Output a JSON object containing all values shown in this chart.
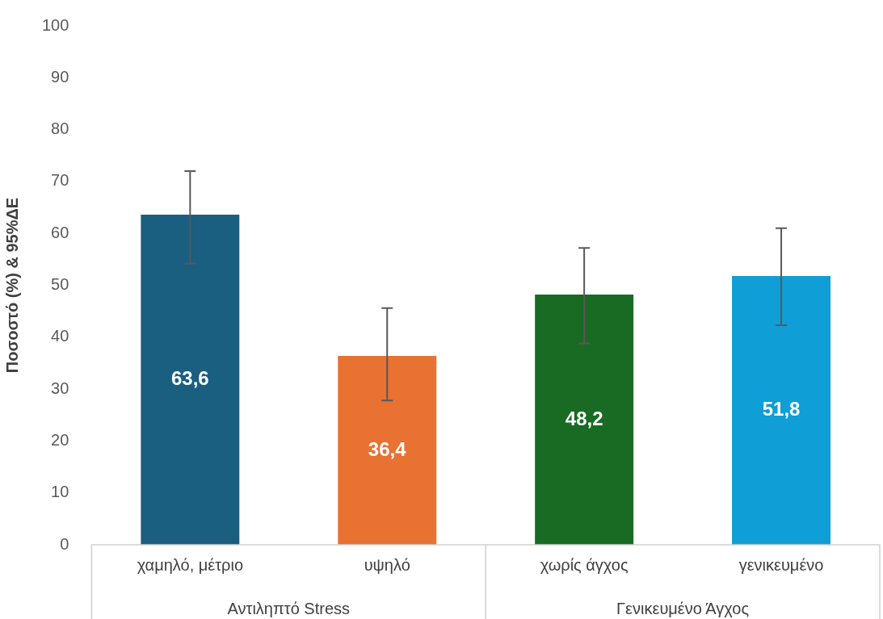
{
  "chart_data": {
    "type": "bar",
    "ylabel": "Ποσοστό (%) & 95%ΔΕ",
    "categories": [
      "χαμηλό, μέτριο",
      "υψηλό",
      "χωρίς άγχος",
      "γενικευμένο"
    ],
    "values": [
      63.6,
      36.4,
      48.2,
      51.8
    ],
    "colors": [
      "#1a5e80",
      "#e97132",
      "#196b24",
      "#0f9ed5"
    ],
    "errors": [
      [
        54.2,
        72.0
      ],
      [
        27.8,
        45.6
      ],
      [
        38.8,
        57.2
      ],
      [
        42.3,
        61.0
      ]
    ],
    "value_labels": [
      "63,6",
      "36,4",
      "48,2",
      "51,8"
    ],
    "annotations": [
      "Αντιληπτό Stress",
      "Γενικευμένο Άγχος"
    ],
    "ylim": [
      0,
      100
    ],
    "yticks": [
      0,
      10,
      20,
      30,
      40,
      50,
      60,
      70,
      80,
      90,
      100
    ],
    "grid": false,
    "legend": false
  }
}
